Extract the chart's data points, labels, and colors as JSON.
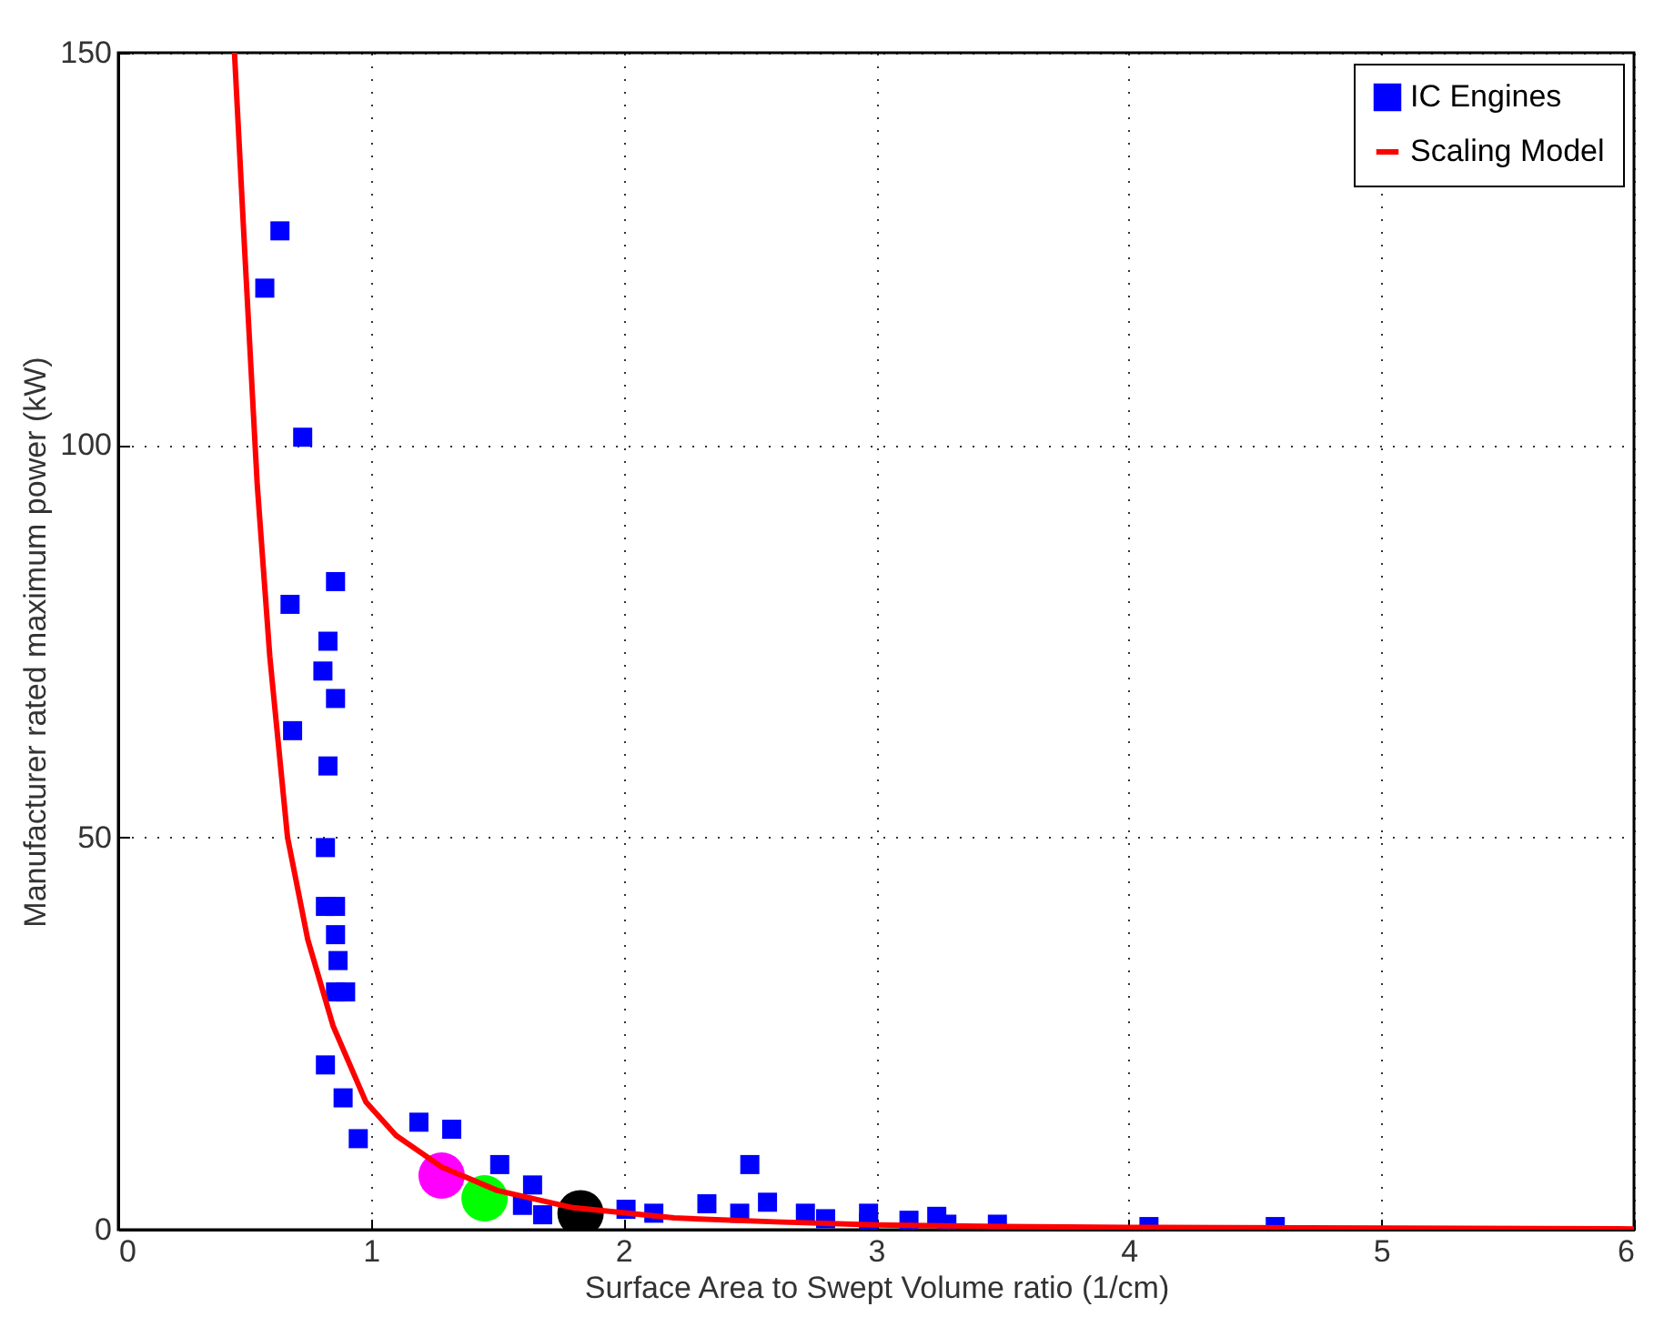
{
  "chart_data": {
    "type": "scatter",
    "xlabel": "Surface Area to Swept Volume ratio (1/cm)",
    "ylabel": "Manufacturer rated maximum power (kW)",
    "xlim": [
      0,
      6
    ],
    "xticks": [
      0,
      1,
      2,
      3,
      4,
      5,
      6
    ],
    "ylim": [
      0,
      150
    ],
    "yticks": [
      0,
      50,
      100,
      150
    ],
    "grid": true,
    "legend": "top right",
    "series": [
      {
        "name": "IC Engines",
        "marker": "square",
        "color": "#0000ff",
        "x": [
          0.64,
          0.58,
          0.73,
          0.86,
          0.68,
          0.83,
          0.81,
          0.86,
          0.83,
          0.69,
          0.82,
          0.82,
          0.86,
          0.86,
          0.87,
          0.9,
          0.86,
          0.82,
          0.89,
          0.95,
          1.19,
          1.32,
          1.51,
          1.64,
          1.6,
          1.68,
          2.01,
          2.12,
          2.33,
          2.46,
          2.5,
          2.57,
          2.72,
          2.8,
          2.97,
          2.97,
          3.13,
          3.24,
          3.28,
          3.48,
          4.08,
          4.58
        ],
        "values": [
          127.3,
          120,
          101,
          82.6,
          79.7,
          75,
          71.2,
          67.7,
          59.1,
          63.6,
          48.7,
          41.2,
          41.2,
          37.6,
          34.3,
          30.3,
          30.3,
          21,
          16.8,
          11.6,
          13.7,
          12.8,
          8.3,
          5.7,
          3.1,
          1.9,
          2.6,
          2.1,
          3.3,
          2.1,
          8.3,
          3.5,
          2.1,
          1.4,
          2.1,
          0.9,
          1.2,
          1.7,
          0.7,
          0.7,
          0.4,
          0.4
        ]
      },
      {
        "name": "Scaling Model",
        "type": "line",
        "marker": "none",
        "line_style": "solid",
        "color": "#ff0000",
        "x": [
          0.46,
          0.5,
          0.55,
          0.6,
          0.67,
          0.75,
          0.85,
          0.98,
          1.1,
          1.28,
          1.5,
          1.8,
          2.2,
          2.6,
          3,
          3.5,
          4,
          5,
          6
        ],
        "values": [
          150,
          125,
          95,
          73,
          50,
          37,
          26,
          16.3,
          12,
          8,
          5,
          2.8,
          1.5,
          1,
          0.6,
          0.4,
          0.3,
          0.2,
          0.1
        ]
      },
      {
        "marker": "circle",
        "color": "#000000",
        "x": [
          1.83
        ],
        "values": [
          2.1
        ]
      },
      {
        "marker": "circle",
        "color": "#00ff00",
        "x": [
          1.45
        ],
        "values": [
          4.0
        ]
      },
      {
        "marker": "circle",
        "color": "#ff00ff",
        "x": [
          1.28
        ],
        "values": [
          6.9
        ]
      }
    ]
  }
}
